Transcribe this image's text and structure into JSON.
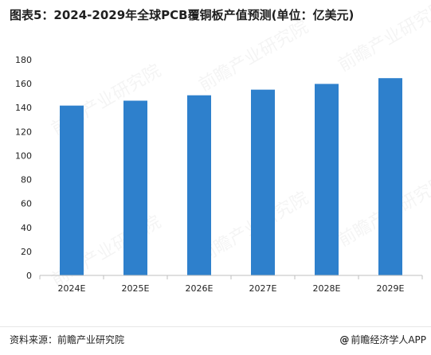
{
  "title": "图表5：2024-2029年全球PCB覆铜板产值预测(单位：亿美元)",
  "source": "资料来源：前瞻产业研究院",
  "credit_symbol": "@",
  "credit": "前瞻经济学人APP",
  "watermark": "前瞻产业研究院",
  "colors": {
    "bar": "#2e80cc",
    "axis": "#bfbfbf",
    "text": "#222222"
  },
  "chart_data": {
    "type": "bar",
    "categories": [
      "2024E",
      "2025E",
      "2026E",
      "2027E",
      "2028E",
      "2029E"
    ],
    "values": [
      141.7,
      145.8,
      150.3,
      155.0,
      159.8,
      164.6
    ],
    "ylim": [
      0,
      180
    ],
    "yticks": [
      0,
      20,
      40,
      60,
      80,
      100,
      120,
      140,
      160,
      180
    ],
    "grid": false,
    "legend": "none"
  }
}
